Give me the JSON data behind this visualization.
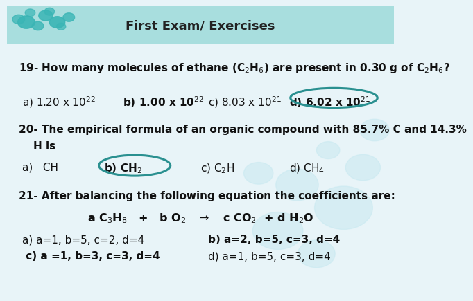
{
  "title": "First Exam/ Exercises",
  "header_bg": "#a8dede",
  "body_bg": "#e8f4f8",
  "title_color": "#000000",
  "title_fontsize": 14,
  "q19_line1": "19- How many molecules of ethane (C$_2$H$_6$) are present in 0.30 g of C$_2$H$_6$?",
  "q19_a": "a) 1.20 x 10$^{22}$",
  "q19_b": "b) 1.00 x 10$^{22}$",
  "q19_c": "c) 8.03 x 10$^{21}$",
  "q19_d": "d) 6.02 x 10$^{21}$",
  "q20_line1": "20- The empirical formula of an organic compound with 85.7% C and 14.3%",
  "q20_line2": "    H is",
  "q20_a": "a)   CH",
  "q20_b": "b) CH$_2$",
  "q20_c": "c) C$_2$H",
  "q20_d": "d) CH$_4$",
  "q21_title": "21- After balancing the following equation the coefficients are:",
  "q21_eq": "a C$_3$H$_8$   +   b O$_2$   $\\rightarrow$   c CO$_2$  + d H$_2$O",
  "q21_ans_a": "a) a=1, b=5, c=2, d=4",
  "q21_ans_b": "b) a=2, b=5, c=3, d=4",
  "q21_ans_c": " c) a =1, b=3, c=3, d=4",
  "q21_ans_d": "d) a=1, b=5, c=3, d=4",
  "circle_color": "#2a9090",
  "text_color": "#111111"
}
